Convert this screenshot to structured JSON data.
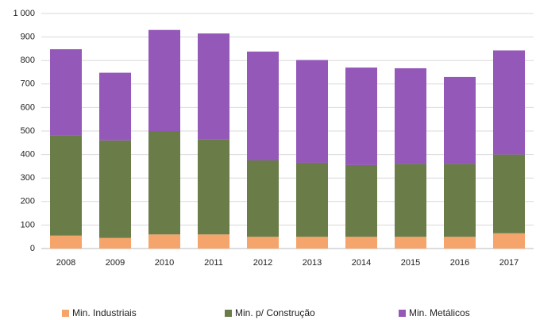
{
  "chart_data": {
    "type": "stacked_bar",
    "categories": [
      "2008",
      "2009",
      "2010",
      "2011",
      "2012",
      "2013",
      "2014",
      "2015",
      "2016",
      "2017"
    ],
    "series": [
      {
        "name": "Min. Industriais",
        "color": "#f5a46b",
        "values": [
          55,
          45,
          60,
          60,
          50,
          50,
          50,
          50,
          50,
          65
        ]
      },
      {
        "name": "Min. p/ Construção",
        "color": "#6a7c48",
        "values": [
          425,
          415,
          440,
          405,
          325,
          315,
          305,
          310,
          310,
          335
        ]
      },
      {
        "name": "Min. Metálicos",
        "color": "#9458b9",
        "values": [
          368,
          288,
          430,
          450,
          463,
          437,
          415,
          407,
          370,
          443
        ]
      }
    ],
    "ylim": [
      0,
      1000
    ],
    "yticks": [
      0,
      100,
      200,
      300,
      400,
      500,
      600,
      700,
      800,
      900,
      {
        "value": 1000,
        "label": "1 000"
      }
    ],
    "grid": true,
    "legend": "bottom"
  }
}
